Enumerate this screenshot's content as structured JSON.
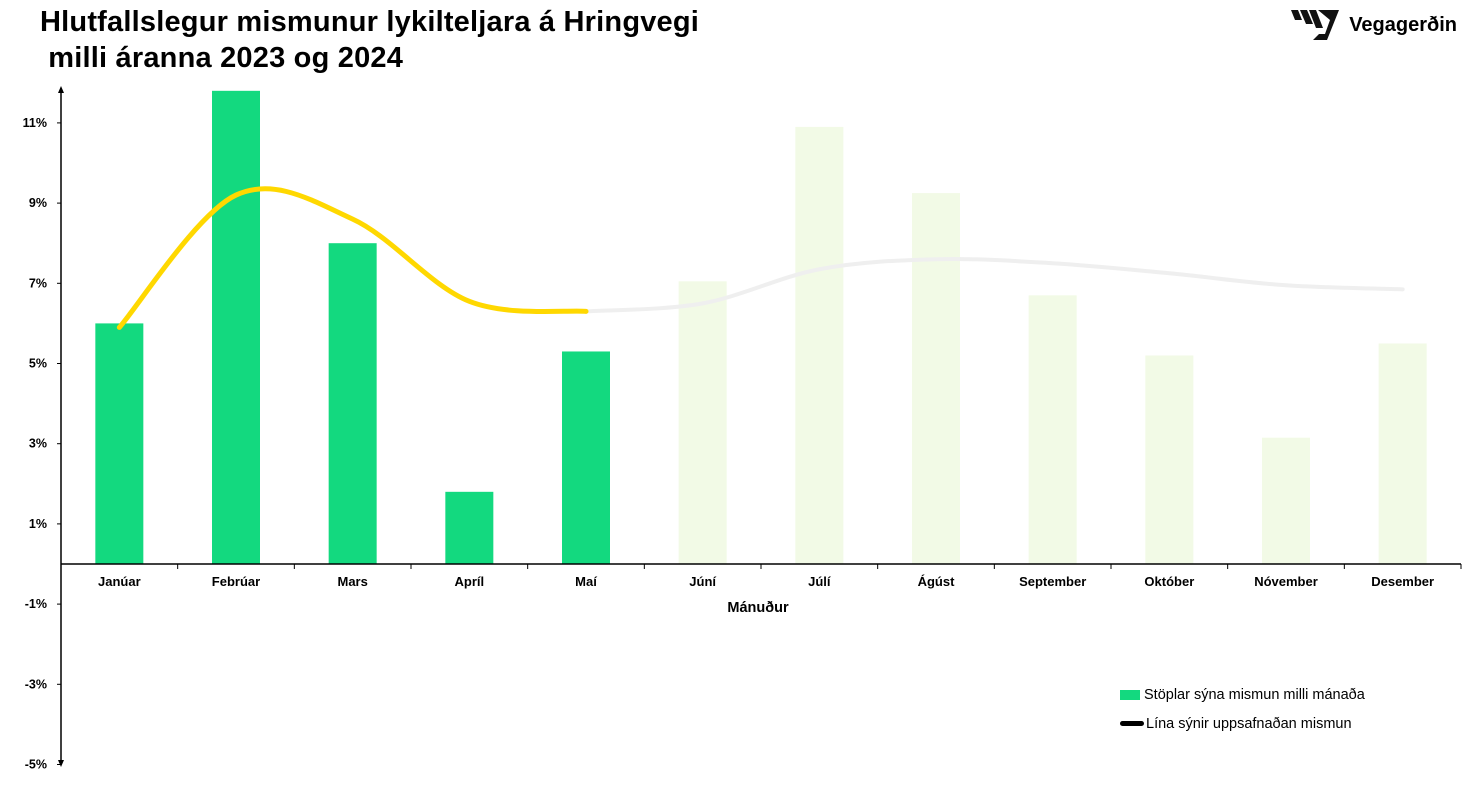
{
  "title": {
    "line1": "Hlutfallslegur mismunur lykilteljara á Hringvegi",
    "line2": " milli áranna 2023 og 2024"
  },
  "logo": {
    "text": "Vegagerðin",
    "icon": "vegagerdin-stripes-logo"
  },
  "legend": {
    "bars_label": "Stöplar sýna mismun milli mánaða",
    "line_label": "Lína sýnir uppsafnaðan mismun"
  },
  "colors": {
    "bar_actual": "#13D97F",
    "bar_forecast": "#F2FAE6",
    "line_actual": "#FFD800",
    "line_forecast": "#EFEFEF",
    "legend_line": "#000000",
    "axis": "#000000"
  },
  "chart_data": {
    "type": "bar",
    "xlabel": "Mánuður",
    "ylabel": "",
    "ylim": [
      -5,
      12
    ],
    "yticks": [
      -5,
      -3,
      -1,
      1,
      3,
      5,
      7,
      9,
      11
    ],
    "ytick_labels": [
      "-5%",
      "-3%",
      "-1%",
      "1%",
      "3%",
      "5%",
      "7%",
      "9%",
      "11%"
    ],
    "categories": [
      "Janúar",
      "Febrúar",
      "Mars",
      "Apríl",
      "Maí",
      "Júní",
      "Júlí",
      "Ágúst",
      "September",
      "Október",
      "Nóvember",
      "Desember"
    ],
    "series": [
      {
        "kind": "bar",
        "name": "Stöplar sýna mismun milli mánaða",
        "values": [
          6.0,
          11.8,
          8.0,
          1.8,
          5.3,
          7.05,
          10.9,
          9.25,
          6.7,
          5.2,
          3.15,
          5.5
        ],
        "actual_count": 5
      },
      {
        "kind": "line",
        "name": "Lína sýnir uppsafnaðan mismun",
        "values": [
          5.9,
          9.2,
          8.6,
          6.55,
          6.3,
          6.5,
          7.35,
          7.6,
          7.5,
          7.25,
          6.95,
          6.85
        ],
        "actual_count": 5
      }
    ],
    "grid": false,
    "legend_position": "bottom-right"
  }
}
